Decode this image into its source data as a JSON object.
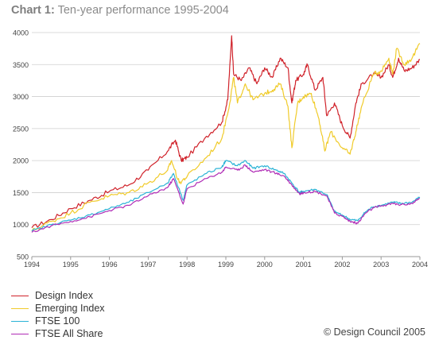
{
  "title": {
    "prefix": "Chart 1:",
    "text": "Ten-year performance 1995-2004"
  },
  "copyright": "© Design Council 2005",
  "colors": {
    "design": "#d0222a",
    "emerging": "#f0cb2a",
    "ftse100": "#2bb3d6",
    "allshare": "#b02cb6",
    "grid": "#cfcfcf",
    "axis": "#999999"
  },
  "chart_data": {
    "type": "line",
    "title": "Ten-year performance 1995-2004",
    "xlabel": "",
    "ylabel": "",
    "xlim": [
      1994,
      2004
    ],
    "ylim": [
      500,
      4000
    ],
    "x_ticks": [
      "1994",
      "1995",
      "1996",
      "1997",
      "1998",
      "1999",
      "2000",
      "2001",
      "2002",
      "2003",
      "2004"
    ],
    "y_ticks": [
      "500",
      "1000",
      "1500",
      "2000",
      "2500",
      "3000",
      "3500",
      "4000"
    ],
    "grid": "horizontal",
    "legend_position": "bottom-left",
    "series": [
      {
        "name": "Design Index",
        "color": "#d0222a",
        "points": [
          [
            1994.0,
            950
          ],
          [
            1994.5,
            1080
          ],
          [
            1995.0,
            1250
          ],
          [
            1995.5,
            1380
          ],
          [
            1996.0,
            1520
          ],
          [
            1996.5,
            1620
          ],
          [
            1997.0,
            1850
          ],
          [
            1997.5,
            2150
          ],
          [
            1997.7,
            2320
          ],
          [
            1997.85,
            2000
          ],
          [
            1998.0,
            2050
          ],
          [
            1998.5,
            2380
          ],
          [
            1998.9,
            2600
          ],
          [
            1999.05,
            2950
          ],
          [
            1999.15,
            3950
          ],
          [
            1999.2,
            3350
          ],
          [
            1999.4,
            3250
          ],
          [
            1999.6,
            3450
          ],
          [
            1999.8,
            3200
          ],
          [
            2000.0,
            3450
          ],
          [
            2000.2,
            3300
          ],
          [
            2000.4,
            3600
          ],
          [
            2000.6,
            3450
          ],
          [
            2000.7,
            2900
          ],
          [
            2000.8,
            3250
          ],
          [
            2001.0,
            3350
          ],
          [
            2001.1,
            3500
          ],
          [
            2001.3,
            3100
          ],
          [
            2001.5,
            3300
          ],
          [
            2001.6,
            2700
          ],
          [
            2001.8,
            2900
          ],
          [
            2002.0,
            2550
          ],
          [
            2002.2,
            2350
          ],
          [
            2002.35,
            2900
          ],
          [
            2002.5,
            3200
          ],
          [
            2002.8,
            3350
          ],
          [
            2003.0,
            3300
          ],
          [
            2003.2,
            3500
          ],
          [
            2003.3,
            3300
          ],
          [
            2003.45,
            3600
          ],
          [
            2003.6,
            3400
          ],
          [
            2003.8,
            3450
          ],
          [
            2004.0,
            3580
          ]
        ]
      },
      {
        "name": "Emerging Index",
        "color": "#f0cb2a",
        "points": [
          [
            1994.0,
            900
          ],
          [
            1994.5,
            1050
          ],
          [
            1995.0,
            1180
          ],
          [
            1995.5,
            1350
          ],
          [
            1996.0,
            1450
          ],
          [
            1996.5,
            1500
          ],
          [
            1997.0,
            1650
          ],
          [
            1997.5,
            1850
          ],
          [
            1997.6,
            2000
          ],
          [
            1997.8,
            1650
          ],
          [
            1998.0,
            1750
          ],
          [
            1998.5,
            2050
          ],
          [
            1998.9,
            2350
          ],
          [
            1999.1,
            2900
          ],
          [
            1999.2,
            3300
          ],
          [
            1999.3,
            2900
          ],
          [
            1999.5,
            3200
          ],
          [
            1999.7,
            2950
          ],
          [
            2000.0,
            3050
          ],
          [
            2000.2,
            3100
          ],
          [
            2000.4,
            3200
          ],
          [
            2000.6,
            2850
          ],
          [
            2000.7,
            2200
          ],
          [
            2000.85,
            2900
          ],
          [
            2001.0,
            3000
          ],
          [
            2001.2,
            3050
          ],
          [
            2001.4,
            2650
          ],
          [
            2001.55,
            2150
          ],
          [
            2001.7,
            2450
          ],
          [
            2002.0,
            2200
          ],
          [
            2002.2,
            2100
          ],
          [
            2002.35,
            2450
          ],
          [
            2002.5,
            2850
          ],
          [
            2002.8,
            3350
          ],
          [
            2003.0,
            3400
          ],
          [
            2003.2,
            3600
          ],
          [
            2003.3,
            3350
          ],
          [
            2003.4,
            3750
          ],
          [
            2003.6,
            3500
          ],
          [
            2003.8,
            3600
          ],
          [
            2004.0,
            3830
          ]
        ]
      },
      {
        "name": "FTSE 100",
        "color": "#2bb3d6",
        "points": [
          [
            1994.0,
            900
          ],
          [
            1994.5,
            1000
          ],
          [
            1995.0,
            1070
          ],
          [
            1995.5,
            1150
          ],
          [
            1996.0,
            1250
          ],
          [
            1996.5,
            1350
          ],
          [
            1997.0,
            1500
          ],
          [
            1997.5,
            1650
          ],
          [
            1997.65,
            1800
          ],
          [
            1997.9,
            1380
          ],
          [
            1998.0,
            1620
          ],
          [
            1998.5,
            1800
          ],
          [
            1998.9,
            1900
          ],
          [
            1999.0,
            2000
          ],
          [
            1999.3,
            1920
          ],
          [
            1999.5,
            2000
          ],
          [
            1999.7,
            1880
          ],
          [
            2000.0,
            1920
          ],
          [
            2000.3,
            1850
          ],
          [
            2000.5,
            1800
          ],
          [
            2000.7,
            1650
          ],
          [
            2000.9,
            1500
          ],
          [
            2001.0,
            1520
          ],
          [
            2001.3,
            1550
          ],
          [
            2001.6,
            1470
          ],
          [
            2001.8,
            1200
          ],
          [
            2002.0,
            1150
          ],
          [
            2002.2,
            1080
          ],
          [
            2002.4,
            1060
          ],
          [
            2002.6,
            1200
          ],
          [
            2002.8,
            1280
          ],
          [
            2003.0,
            1300
          ],
          [
            2003.3,
            1350
          ],
          [
            2003.5,
            1330
          ],
          [
            2003.8,
            1350
          ],
          [
            2004.0,
            1430
          ]
        ]
      },
      {
        "name": "FTSE All Share",
        "color": "#b02cb6",
        "points": [
          [
            1994.0,
            880
          ],
          [
            1994.5,
            980
          ],
          [
            1995.0,
            1050
          ],
          [
            1995.5,
            1120
          ],
          [
            1996.0,
            1220
          ],
          [
            1996.5,
            1300
          ],
          [
            1997.0,
            1450
          ],
          [
            1997.5,
            1580
          ],
          [
            1997.65,
            1720
          ],
          [
            1997.9,
            1320
          ],
          [
            1998.0,
            1560
          ],
          [
            1998.5,
            1720
          ],
          [
            1998.9,
            1820
          ],
          [
            1999.0,
            1900
          ],
          [
            1999.3,
            1850
          ],
          [
            1999.5,
            1930
          ],
          [
            1999.7,
            1820
          ],
          [
            2000.0,
            1860
          ],
          [
            2000.3,
            1800
          ],
          [
            2000.5,
            1760
          ],
          [
            2000.7,
            1620
          ],
          [
            2000.9,
            1480
          ],
          [
            2001.0,
            1500
          ],
          [
            2001.3,
            1520
          ],
          [
            2001.6,
            1450
          ],
          [
            2001.8,
            1180
          ],
          [
            2002.0,
            1130
          ],
          [
            2002.2,
            1050
          ],
          [
            2002.4,
            1020
          ],
          [
            2002.6,
            1180
          ],
          [
            2002.8,
            1260
          ],
          [
            2003.0,
            1290
          ],
          [
            2003.3,
            1330
          ],
          [
            2003.5,
            1310
          ],
          [
            2003.8,
            1330
          ],
          [
            2004.0,
            1410
          ]
        ]
      }
    ]
  }
}
